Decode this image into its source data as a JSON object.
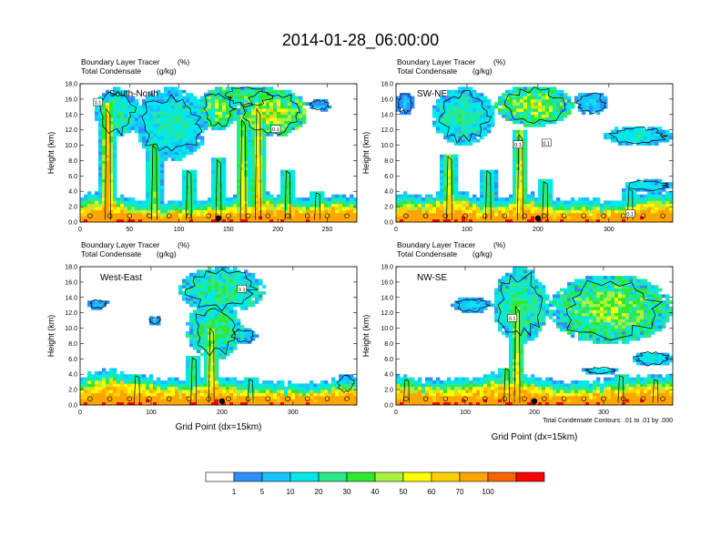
{
  "title": "2014-01-28_06:00:00",
  "common": {
    "var_label_1": "Boundary Layer Tracer",
    "var_unit_1": "(%)",
    "var_label_2": "Total Condensate",
    "var_unit_2": "(g/kg)",
    "ylabel": "Height (km)",
    "xlabel": "Grid Point (dx=15km)",
    "y_ticks": [
      "0.0",
      "2.0",
      "4.0",
      "6.0",
      "8.0",
      "10.0",
      "12.0",
      "14.0",
      "16.0",
      "18.0"
    ],
    "ylim": [
      0,
      18
    ],
    "contour_note": "Total Condensate Contours: .01 to .01 by .000",
    "contour_tag": "0.1"
  },
  "colors": {
    "bins": [
      "#ffffff",
      "#2f8fff",
      "#19c3ff",
      "#00e8e8",
      "#2de889",
      "#2fe82f",
      "#a8f23c",
      "#ffff00",
      "#ffd000",
      "#ffa500",
      "#ff6400",
      "#ff0000"
    ],
    "contour": "#000000"
  },
  "colorbar": {
    "labels": [
      "1",
      "5",
      "10",
      "20",
      "30",
      "40",
      "50",
      "60",
      "70",
      "100"
    ]
  },
  "chart_data": [
    {
      "type": "heatmap",
      "name": "South-North",
      "xlim": [
        0,
        280
      ],
      "x_ticks": [
        0,
        50,
        100,
        150,
        200,
        250
      ],
      "columns": [
        {
          "x": 28,
          "top": 15.5,
          "v": 90
        },
        {
          "x": 75,
          "top": 10.5,
          "v": 45
        },
        {
          "x": 110,
          "top": 7.0,
          "v": 35
        },
        {
          "x": 140,
          "top": 8.5,
          "v": 40
        },
        {
          "x": 165,
          "top": 14.0,
          "v": 65
        },
        {
          "x": 180,
          "top": 15.5,
          "v": 80
        },
        {
          "x": 210,
          "top": 7.0,
          "v": 40
        },
        {
          "x": 240,
          "top": 4.0,
          "v": 30
        }
      ],
      "clouds": [
        {
          "x1": 15,
          "x2": 60,
          "y1": 11,
          "y2": 17.5,
          "v": 25
        },
        {
          "x1": 55,
          "x2": 130,
          "y1": 8,
          "y2": 17.5,
          "v": 22
        },
        {
          "x1": 120,
          "x2": 160,
          "y1": 12,
          "y2": 17.5,
          "v": 45
        },
        {
          "x1": 160,
          "x2": 230,
          "y1": 11,
          "y2": 17.5,
          "v": 55
        },
        {
          "x1": 140,
          "x2": 200,
          "y1": 15,
          "y2": 17.8,
          "v": 40
        },
        {
          "x1": 230,
          "x2": 255,
          "y1": 14.5,
          "y2": 16,
          "v": 8
        }
      ],
      "pbl": [
        {
          "x": 0,
          "h": 2.4
        },
        {
          "x": 30,
          "h": 2.8
        },
        {
          "x": 60,
          "h": 1.4
        },
        {
          "x": 100,
          "h": 1.6
        },
        {
          "x": 140,
          "h": 1.8
        },
        {
          "x": 180,
          "h": 2.6
        },
        {
          "x": 220,
          "h": 2.0
        },
        {
          "x": 260,
          "h": 2.2
        },
        {
          "x": 280,
          "h": 2.2
        }
      ],
      "tag_positions": [
        {
          "x": 18,
          "y": 15.5
        },
        {
          "x": 198,
          "y": 12.0
        }
      ],
      "marker_x": 140
    },
    {
      "type": "heatmap",
      "name": "SW-NE",
      "xlim": [
        0,
        390
      ],
      "x_ticks": [
        0,
        100,
        200,
        300
      ],
      "columns": [
        {
          "x": 75,
          "top": 9.0,
          "v": 65
        },
        {
          "x": 130,
          "top": 7.0,
          "v": 35
        },
        {
          "x": 175,
          "top": 12.0,
          "v": 70
        },
        {
          "x": 210,
          "top": 5.5,
          "v": 35
        },
        {
          "x": 330,
          "top": 4.5,
          "v": 25
        }
      ],
      "clouds": [
        {
          "x1": 50,
          "x2": 140,
          "y1": 10,
          "y2": 17.5,
          "v": 25
        },
        {
          "x1": 140,
          "x2": 250,
          "y1": 12.5,
          "y2": 17.8,
          "v": 50
        },
        {
          "x1": 250,
          "x2": 300,
          "y1": 14,
          "y2": 17.0,
          "v": 12
        },
        {
          "x1": 290,
          "x2": 390,
          "y1": 10,
          "y2": 12.5,
          "v": 18
        },
        {
          "x1": 320,
          "x2": 390,
          "y1": 4,
          "y2": 5.5,
          "v": 18
        },
        {
          "x1": 0,
          "x2": 25,
          "y1": 14,
          "y2": 17,
          "v": 8
        }
      ],
      "pbl": [
        {
          "x": 0,
          "h": 2.6
        },
        {
          "x": 40,
          "h": 2.2
        },
        {
          "x": 80,
          "h": 2.8
        },
        {
          "x": 130,
          "h": 1.8
        },
        {
          "x": 175,
          "h": 2.6
        },
        {
          "x": 220,
          "h": 2.0
        },
        {
          "x": 300,
          "h": 1.6
        },
        {
          "x": 360,
          "h": 2.6
        },
        {
          "x": 390,
          "h": 2.8
        }
      ],
      "tag_positions": [
        {
          "x": 172,
          "y": 10.0
        },
        {
          "x": 212,
          "y": 10.2
        },
        {
          "x": 330,
          "y": 1.0
        }
      ],
      "marker_x": 200
    },
    {
      "type": "heatmap",
      "name": "West-East",
      "xlim": [
        0,
        390
      ],
      "x_ticks": [
        0,
        100,
        200,
        300
      ],
      "columns": [
        {
          "x": 80,
          "top": 4.0,
          "v": 30
        },
        {
          "x": 160,
          "top": 6.5,
          "v": 35
        },
        {
          "x": 185,
          "top": 10.5,
          "v": 70
        },
        {
          "x": 240,
          "top": 3.5,
          "v": 25
        }
      ],
      "clouds": [
        {
          "x1": 140,
          "x2": 260,
          "y1": 12,
          "y2": 18.0,
          "v": 30
        },
        {
          "x1": 150,
          "x2": 230,
          "y1": 6,
          "y2": 13.5,
          "v": 35
        },
        {
          "x1": 10,
          "x2": 40,
          "y1": 12.5,
          "y2": 13.8,
          "v": 8
        },
        {
          "x1": 95,
          "x2": 115,
          "y1": 10.5,
          "y2": 11.5,
          "v": 8
        },
        {
          "x1": 210,
          "x2": 250,
          "y1": 8,
          "y2": 10,
          "v": 12
        },
        {
          "x1": 360,
          "x2": 390,
          "y1": 1.5,
          "y2": 4.0,
          "v": 12
        }
      ],
      "pbl": [
        {
          "x": 0,
          "h": 2.6
        },
        {
          "x": 40,
          "h": 3.4
        },
        {
          "x": 90,
          "h": 2.4
        },
        {
          "x": 150,
          "h": 2.2
        },
        {
          "x": 190,
          "h": 2.8
        },
        {
          "x": 250,
          "h": 1.8
        },
        {
          "x": 320,
          "h": 1.6
        },
        {
          "x": 390,
          "h": 2.4
        }
      ],
      "tag_positions": [
        {
          "x": 228,
          "y": 15.0
        }
      ],
      "marker_x": 200
    },
    {
      "type": "heatmap",
      "name": "NW-SE",
      "xlim": [
        0,
        400
      ],
      "x_ticks": [
        0,
        100,
        200,
        300
      ],
      "columns": [
        {
          "x": 15,
          "top": 3.5,
          "v": 35
        },
        {
          "x": 160,
          "top": 5.0,
          "v": 50
        },
        {
          "x": 175,
          "top": 13.5,
          "v": 65
        },
        {
          "x": 325,
          "top": 4.0,
          "v": 35
        },
        {
          "x": 375,
          "top": 3.5,
          "v": 30
        }
      ],
      "clouds": [
        {
          "x1": 140,
          "x2": 220,
          "y1": 8,
          "y2": 18.0,
          "v": 30
        },
        {
          "x1": 220,
          "x2": 400,
          "y1": 8,
          "y2": 17.0,
          "v": 45
        },
        {
          "x1": 80,
          "x2": 140,
          "y1": 12,
          "y2": 14,
          "v": 12
        },
        {
          "x1": 270,
          "x2": 320,
          "y1": 4,
          "y2": 5,
          "v": 18
        },
        {
          "x1": 340,
          "x2": 400,
          "y1": 5,
          "y2": 7,
          "v": 18
        }
      ],
      "pbl": [
        {
          "x": 0,
          "h": 3.0
        },
        {
          "x": 40,
          "h": 2.0
        },
        {
          "x": 100,
          "h": 2.2
        },
        {
          "x": 160,
          "h": 3.2
        },
        {
          "x": 220,
          "h": 2.2
        },
        {
          "x": 280,
          "h": 1.8
        },
        {
          "x": 340,
          "h": 2.6
        },
        {
          "x": 400,
          "h": 2.8
        }
      ],
      "tag_positions": [
        {
          "x": 168,
          "y": 11.2
        }
      ],
      "marker_x": 200
    }
  ]
}
